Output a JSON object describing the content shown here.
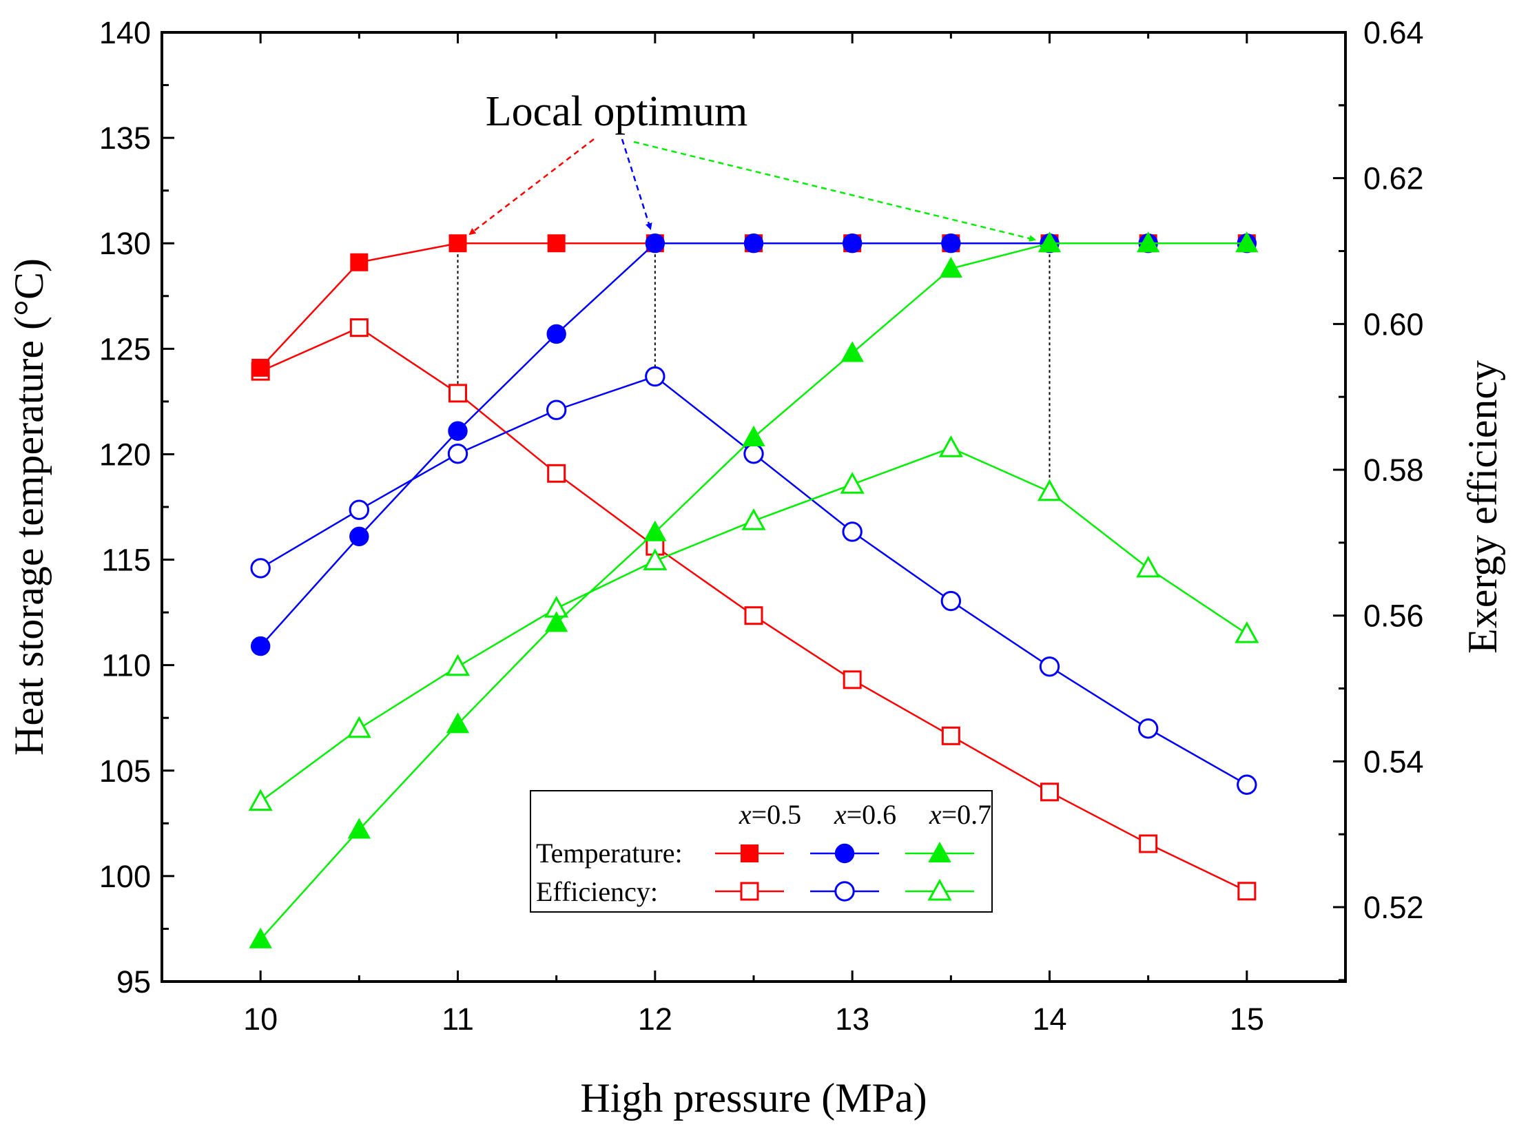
{
  "chart_data": {
    "type": "line",
    "title": "",
    "xlabel": "High pressure (MPa)",
    "ylabel_left": "Heat storage temperature (°C)",
    "ylabel_right": "Exergy efficiency",
    "xlim": [
      9.5,
      15.5
    ],
    "ylim_left": [
      95,
      140
    ],
    "ylim_right": [
      0.5098,
      0.64
    ],
    "x_ticks": [
      "10",
      "11",
      "12",
      "13",
      "14",
      "15"
    ],
    "y_ticks_left": [
      "95",
      "100",
      "105",
      "110",
      "115",
      "120",
      "125",
      "130",
      "135",
      "140"
    ],
    "y_ticks_right": [
      "0.52",
      "0.54",
      "0.56",
      "0.58",
      "0.60",
      "0.62",
      "0.64"
    ],
    "x": [
      10,
      10.5,
      11,
      11.5,
      12,
      12.5,
      13,
      13.5,
      14,
      14.5,
      15
    ],
    "series": [
      {
        "group": "Temperature",
        "x_value": "0.5",
        "axis": "left",
        "color": "#ff0000",
        "marker": "square",
        "filled": true,
        "values": [
          124.1,
          129.1,
          130,
          130,
          130,
          130,
          130,
          130,
          130,
          130,
          130
        ]
      },
      {
        "group": "Temperature",
        "x_value": "0.6",
        "axis": "left",
        "color": "#0000ff",
        "marker": "circle",
        "filled": true,
        "values": [
          110.9,
          116.1,
          121.1,
          125.7,
          130,
          130,
          130,
          130,
          130,
          130,
          130
        ]
      },
      {
        "group": "Temperature",
        "x_value": "0.7",
        "axis": "left",
        "color": "#00ee00",
        "marker": "triangle",
        "filled": true,
        "values": [
          97.0,
          102.2,
          107.2,
          112.0,
          116.3,
          120.8,
          124.8,
          128.8,
          130,
          130,
          130
        ]
      },
      {
        "group": "Efficiency",
        "x_value": "0.5",
        "axis": "right",
        "color": "#ff0000",
        "marker": "square",
        "filled": false,
        "values": [
          0.5935,
          0.5995,
          0.5905,
          0.5795,
          0.5695,
          0.56,
          0.5512,
          0.5435,
          0.5358,
          0.5287,
          0.5222
        ]
      },
      {
        "group": "Efficiency",
        "x_value": "0.6",
        "axis": "right",
        "color": "#0000ff",
        "marker": "circle",
        "filled": false,
        "values": [
          0.5665,
          0.5745,
          0.5822,
          0.5882,
          0.5928,
          0.5822,
          0.5715,
          0.562,
          0.553,
          0.5445,
          0.5368
        ]
      },
      {
        "group": "Efficiency",
        "x_value": "0.7",
        "axis": "right",
        "color": "#00ee00",
        "marker": "triangle",
        "filled": false,
        "values": [
          0.5345,
          0.5445,
          0.553,
          0.561,
          0.5675,
          0.573,
          0.578,
          0.583,
          0.577,
          0.5665,
          0.5575
        ]
      }
    ],
    "annotation": {
      "text": "Local optimum",
      "arrow_targets": [
        {
          "x": 11,
          "y": 130,
          "color": "#ff0000"
        },
        {
          "x": 12,
          "y": 130,
          "color": "#0000ff"
        },
        {
          "x": 14,
          "y": 130,
          "color": "#00ee00"
        }
      ],
      "drop_lines_x": [
        11,
        12,
        14
      ]
    },
    "legend": {
      "placement": "bottom-center",
      "headers": [
        {
          "var": "x",
          "eq": "=0.5"
        },
        {
          "var": "x",
          "eq": "=0.6"
        },
        {
          "var": "x",
          "eq": "=0.7"
        }
      ],
      "row_labels": [
        "Temperature:",
        "Efficiency:"
      ]
    }
  }
}
